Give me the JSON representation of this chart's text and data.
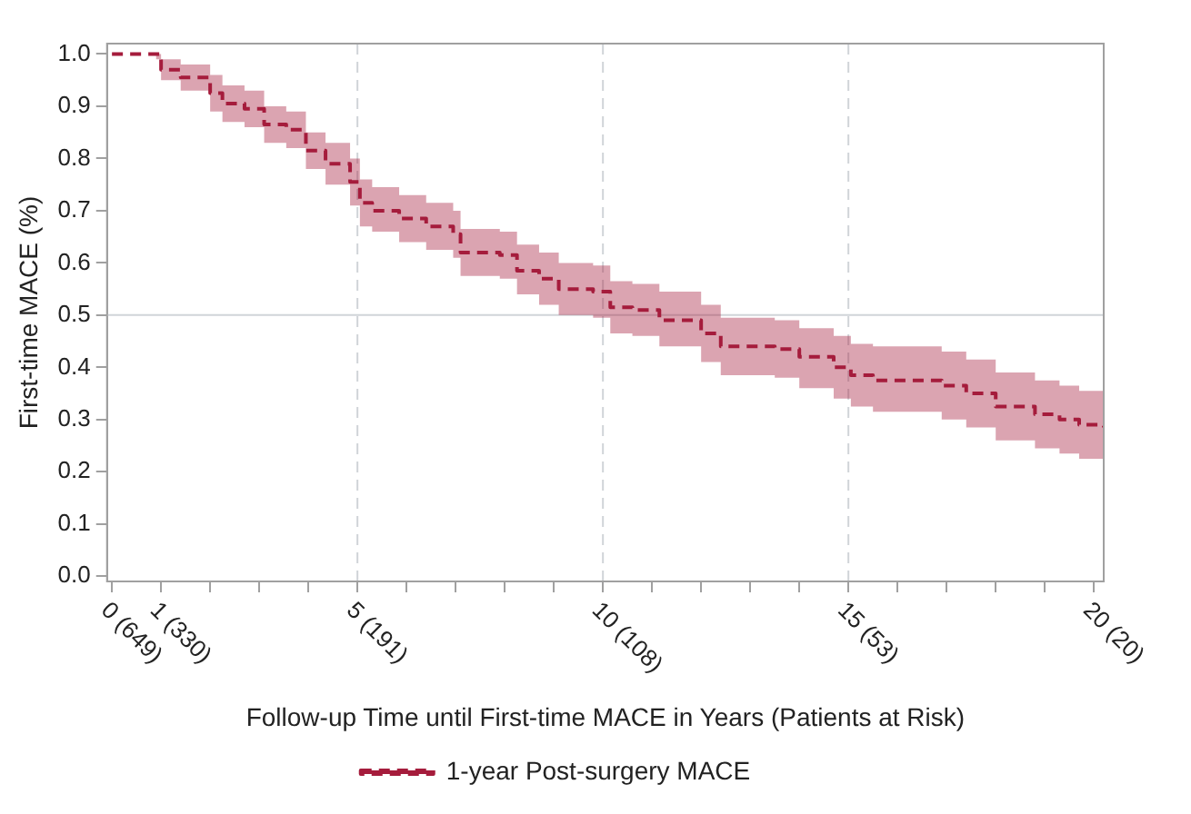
{
  "chart_data": {
    "type": "step",
    "xlabel": "Follow-up Time until First-time MACE in Years (Patients at Risk)",
    "ylabel": "First-time MACE (%)",
    "xlim": [
      -0.1,
      20.2
    ],
    "ylim": [
      -0.01,
      1.02
    ],
    "annotations": [
      "(649)",
      "(330)",
      "(191)",
      "(108)",
      "(53)",
      "(20)"
    ],
    "xticks": [
      0,
      1,
      {
        "value": 2,
        "label": null
      },
      {
        "value": 3,
        "label": null
      },
      {
        "value": 4,
        "label": null
      },
      5,
      {
        "value": 6,
        "label": null
      },
      {
        "value": 7,
        "label": null
      },
      {
        "value": 8,
        "label": null
      },
      {
        "value": 9,
        "label": null
      },
      10,
      {
        "value": 11,
        "label": null
      },
      {
        "value": 12,
        "label": null
      },
      {
        "value": 13,
        "label": null
      },
      {
        "value": 14,
        "label": null
      },
      15,
      {
        "value": 16,
        "label": null
      },
      {
        "value": 17,
        "label": null
      },
      {
        "value": 18,
        "label": null
      },
      {
        "value": 19,
        "label": null
      },
      20
    ],
    "yticks": [
      {
        "value": 0,
        "label": "0.0"
      },
      0.1,
      0.2,
      0.3,
      0.4,
      0.5,
      0.6,
      0.7,
      0.8,
      0.9,
      {
        "value": 1,
        "label": "1.0"
      }
    ],
    "grid": false,
    "legend": "bottom",
    "line_style": "dashed",
    "ref_lines": [
      {
        "axis": "x",
        "value": 5,
        "color": "#d0d4d8",
        "line_style": "dashed"
      },
      {
        "axis": "x",
        "value": 10,
        "color": "#d0d4d8",
        "line_style": "dashed"
      },
      {
        "axis": "x",
        "value": 15,
        "color": "#d0d4d8",
        "line_style": "dashed"
      },
      {
        "axis": "y",
        "value": 0.5,
        "color": "#d0d4d8",
        "line_style": "solid"
      }
    ],
    "series": [
      {
        "name": "1-year Post-surgery MACE",
        "color": "#a51c3c",
        "x": [
          0,
          0.9,
          1.0,
          1.4,
          1.8,
          2.0,
          2.25,
          2.7,
          3.1,
          3.55,
          3.95,
          4.35,
          4.85,
          5.05,
          5.3,
          5.85,
          6.4,
          6.95,
          7.1,
          7.9,
          8.25,
          8.7,
          9.1,
          9.8,
          10.15,
          10.6,
          11.15,
          12.0,
          12.4,
          13.5,
          14.0,
          14.7,
          15.05,
          15.5,
          16.9,
          17.4,
          18.0,
          18.8,
          19.3,
          19.7,
          20.2
        ],
        "values": [
          1.0,
          1.0,
          0.97,
          0.955,
          0.955,
          0.925,
          0.905,
          0.895,
          0.865,
          0.855,
          0.815,
          0.79,
          0.755,
          0.715,
          0.7,
          0.685,
          0.67,
          0.655,
          0.62,
          0.615,
          0.585,
          0.57,
          0.55,
          0.545,
          0.515,
          0.51,
          0.49,
          0.465,
          0.44,
          0.435,
          0.42,
          0.4,
          0.385,
          0.375,
          0.365,
          0.35,
          0.325,
          0.31,
          0.3,
          0.29,
          0.285
        ],
        "lower": [
          1.0,
          0.99,
          0.95,
          0.93,
          0.93,
          0.89,
          0.87,
          0.86,
          0.83,
          0.82,
          0.78,
          0.75,
          0.71,
          0.67,
          0.66,
          0.64,
          0.625,
          0.61,
          0.575,
          0.57,
          0.54,
          0.52,
          0.5,
          0.495,
          0.465,
          0.46,
          0.44,
          0.41,
          0.385,
          0.38,
          0.36,
          0.34,
          0.325,
          0.315,
          0.3,
          0.285,
          0.26,
          0.245,
          0.235,
          0.225,
          0.22
        ],
        "upper": [
          1.0,
          1.0,
          0.99,
          0.98,
          0.98,
          0.96,
          0.94,
          0.93,
          0.9,
          0.89,
          0.85,
          0.83,
          0.8,
          0.76,
          0.745,
          0.73,
          0.715,
          0.7,
          0.665,
          0.66,
          0.635,
          0.62,
          0.6,
          0.595,
          0.565,
          0.56,
          0.545,
          0.52,
          0.495,
          0.49,
          0.475,
          0.46,
          0.445,
          0.44,
          0.43,
          0.415,
          0.39,
          0.375,
          0.365,
          0.355,
          0.355
        ]
      }
    ]
  }
}
